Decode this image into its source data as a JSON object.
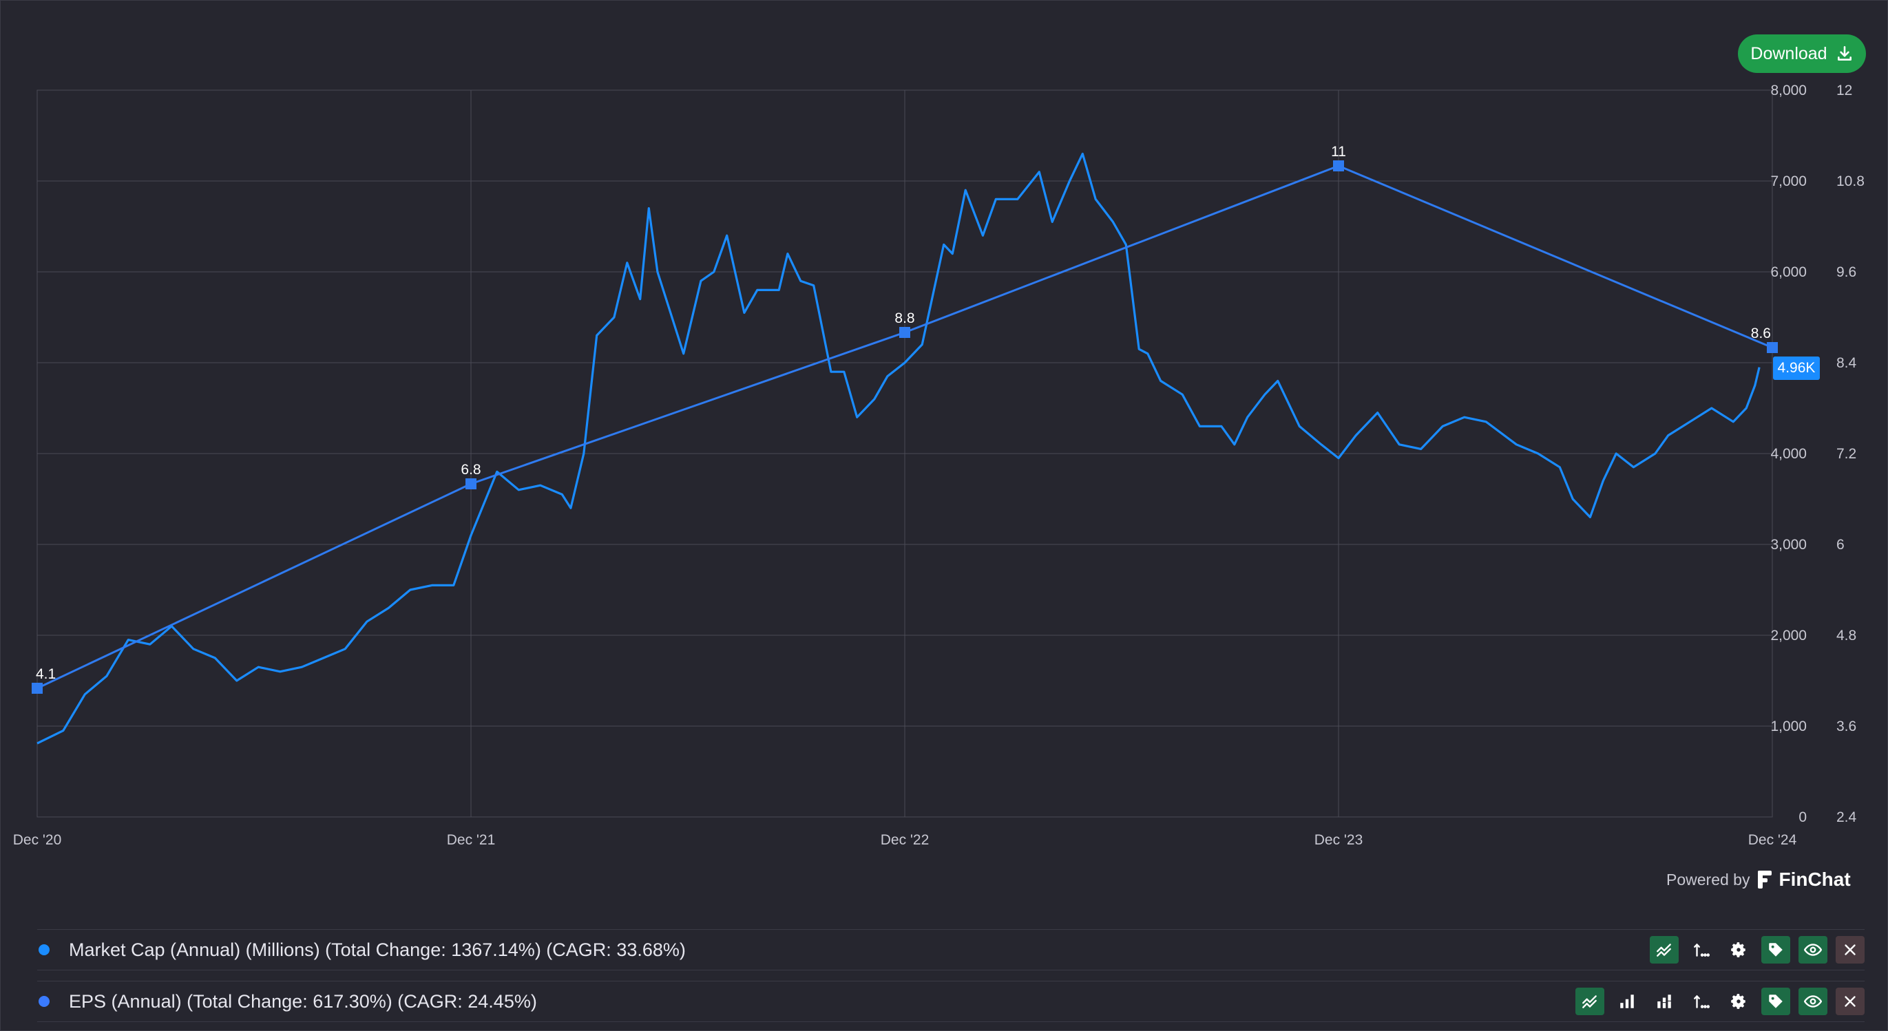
{
  "toolbar": {
    "download_label": "Download"
  },
  "badge": {
    "current_value": "4.96K"
  },
  "footer": {
    "powered_by": "Powered by",
    "brand": "FinChat"
  },
  "legend": [
    {
      "label": "Market Cap (Annual) (Millions) (Total Change: 1367.14%) (CAGR: 33.68%)",
      "color": "#1a8cff"
    },
    {
      "label": "EPS (Annual) (Total Change: 617.30%) (CAGR: 24.45%)",
      "color": "#3a7bff"
    }
  ],
  "chart_data": {
    "type": "line",
    "x_ticks": [
      "Dec '20",
      "Dec '21",
      "Dec '22",
      "Dec '23",
      "Dec '24"
    ],
    "y_left": {
      "ticks": [
        "0",
        "1,000",
        "2,000",
        "3,000",
        "4,000",
        "6,000",
        "7,000",
        "8,000"
      ],
      "range": [
        0,
        8000
      ]
    },
    "y_right": {
      "ticks": [
        "2.4",
        "3.6",
        "4.8",
        "6",
        "7.2",
        "8.4",
        "9.6",
        "10.8",
        "12"
      ],
      "range": [
        2.4,
        12
      ]
    },
    "grid": true,
    "series": [
      {
        "axis": "left",
        "color": "#1a8cff",
        "x": [
          2020.99,
          2021.05,
          2021.1,
          2021.15,
          2021.2,
          2021.25,
          2021.3,
          2021.35,
          2021.4,
          2021.45,
          2021.5,
          2021.55,
          2021.6,
          2021.65,
          2021.7,
          2021.75,
          2021.8,
          2021.85,
          2021.9,
          2021.95,
          2021.99,
          2022.05,
          2022.1,
          2022.15,
          2022.2,
          2022.22,
          2022.25,
          2022.28,
          2022.32,
          2022.35,
          2022.38,
          2022.4,
          2022.42,
          2022.45,
          2022.48,
          2022.52,
          2022.55,
          2022.58,
          2022.62,
          2022.65,
          2022.7,
          2022.72,
          2022.75,
          2022.78,
          2022.82,
          2022.85,
          2022.88,
          2022.92,
          2022.95,
          2022.99,
          2023.03,
          2023.08,
          2023.1,
          2023.13,
          2023.17,
          2023.2,
          2023.25,
          2023.3,
          2023.33,
          2023.37,
          2023.4,
          2023.43,
          2023.47,
          2023.5,
          2023.53,
          2023.55,
          2023.58,
          2023.63,
          2023.67,
          2023.72,
          2023.75,
          2023.78,
          2023.82,
          2023.85,
          2023.9,
          2023.95,
          2023.99,
          2024.03,
          2024.08,
          2024.13,
          2024.18,
          2024.23,
          2024.28,
          2024.33,
          2024.4,
          2024.45,
          2024.5,
          2024.53,
          2024.57,
          2024.6,
          2024.63,
          2024.67,
          2024.72,
          2024.75,
          2024.8,
          2024.85,
          2024.9,
          2024.93,
          2024.95,
          2024.96
        ],
        "y": [
          810,
          950,
          1350,
          1550,
          1950,
          1900,
          2100,
          1850,
          1750,
          1500,
          1650,
          1600,
          1650,
          1750,
          1850,
          2150,
          2300,
          2500,
          2550,
          2550,
          3100,
          3800,
          3600,
          3650,
          3550,
          3400,
          4000,
          5300,
          5500,
          6100,
          5700,
          6700,
          6000,
          5550,
          5100,
          5900,
          6000,
          6400,
          5550,
          5800,
          5800,
          6200,
          5900,
          5850,
          4900,
          4900,
          4400,
          4600,
          4850,
          5000,
          5200,
          6300,
          6200,
          6900,
          6400,
          6800,
          6800,
          7100,
          6550,
          7000,
          7300,
          6800,
          6550,
          6300,
          5150,
          5100,
          4800,
          4650,
          4300,
          4300,
          4100,
          4400,
          4650,
          4800,
          4300,
          4100,
          3950,
          4200,
          4450,
          4100,
          4050,
          4300,
          4400,
          4350,
          4100,
          4000,
          3850,
          3500,
          3300,
          3700,
          4000,
          3850,
          4000,
          4200,
          4350,
          4500,
          4350,
          4500,
          4750,
          4950
        ]
      },
      {
        "axis": "right",
        "color": "#2f7bf0",
        "x": [
          2020.99,
          2021.99,
          2022.99,
          2023.99,
          2024.99
        ],
        "y": [
          4.1,
          6.8,
          8.8,
          11,
          8.6
        ],
        "labels": [
          "4.1",
          "6.8",
          "8.8",
          "11",
          "8.6"
        ]
      }
    ]
  }
}
